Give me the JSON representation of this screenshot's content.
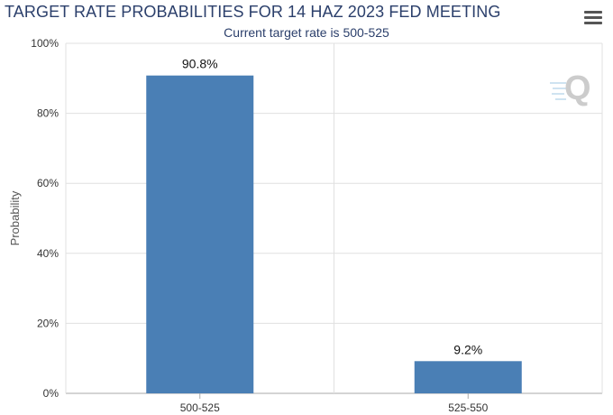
{
  "menu_icon": "hamburger-menu-icon",
  "logo_icon": "q-logo-icon",
  "colors": {
    "bar": "#4a7fb5",
    "grid": "#e0e0e0",
    "title": "#2b3f6b"
  },
  "chart_data": {
    "type": "bar",
    "title": "TARGET RATE PROBABILITIES FOR 14 HAZ 2023 FED MEETING",
    "subtitle": "Current target rate is 500-525",
    "ylabel": "Probability",
    "xlabel": "",
    "categories": [
      "500-525",
      "525-550"
    ],
    "values": [
      90.8,
      9.2
    ],
    "data_labels": [
      "90.8%",
      "9.2%"
    ],
    "ylim": [
      0,
      100
    ],
    "yticks": [
      "0%",
      "20%",
      "40%",
      "60%",
      "80%",
      "100%"
    ],
    "grid": true,
    "legend": "none"
  }
}
